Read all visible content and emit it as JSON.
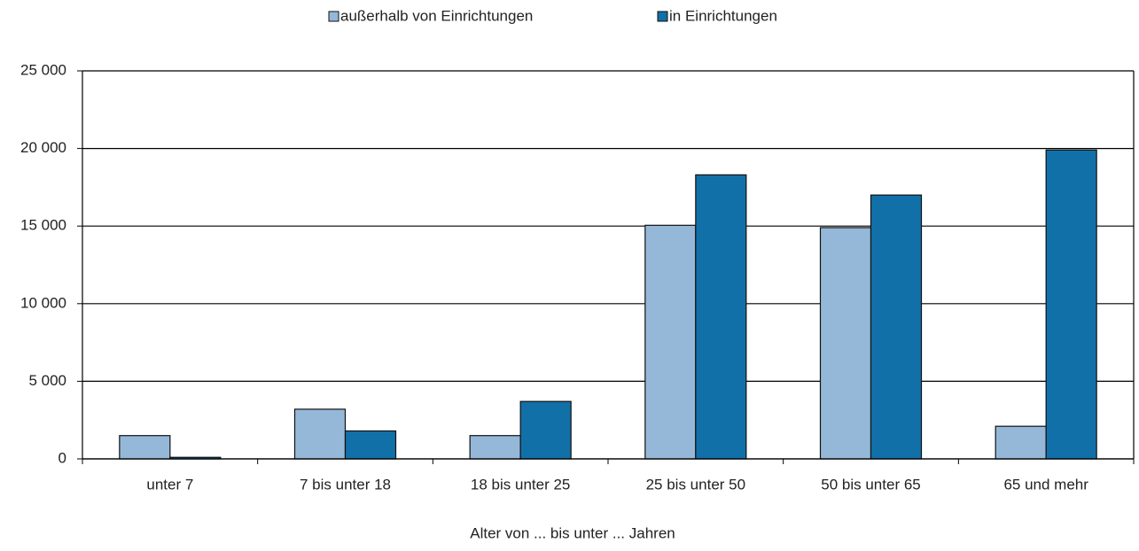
{
  "chart_data": {
    "type": "bar",
    "x_label": "Alter von ... bis unter ... Jahren",
    "categories": [
      "unter 7",
      "7 bis unter 18",
      "18 bis unter 25",
      "25 bis unter 50",
      "50 bis unter 65",
      "65 und mehr"
    ],
    "series": [
      {
        "name": "außerhalb von Einrichtungen",
        "color": "#95b8d9",
        "values": [
          1500,
          3200,
          1500,
          15050,
          14900,
          2100
        ]
      },
      {
        "name": "in Einrichtungen",
        "color": "#1270a8",
        "values": [
          100,
          1800,
          3700,
          18300,
          17000,
          19900
        ]
      }
    ],
    "ylim": [
      0,
      25000
    ],
    "yticks": [
      0,
      {
        "value": 5000,
        "label": "5 000"
      },
      {
        "value": 10000,
        "label": "10 000"
      },
      {
        "value": 15000,
        "label": "15 000"
      },
      {
        "value": 20000,
        "label": "20 000"
      },
      {
        "value": 25000,
        "label": "25 000"
      }
    ],
    "grid": true,
    "legend": "top"
  }
}
